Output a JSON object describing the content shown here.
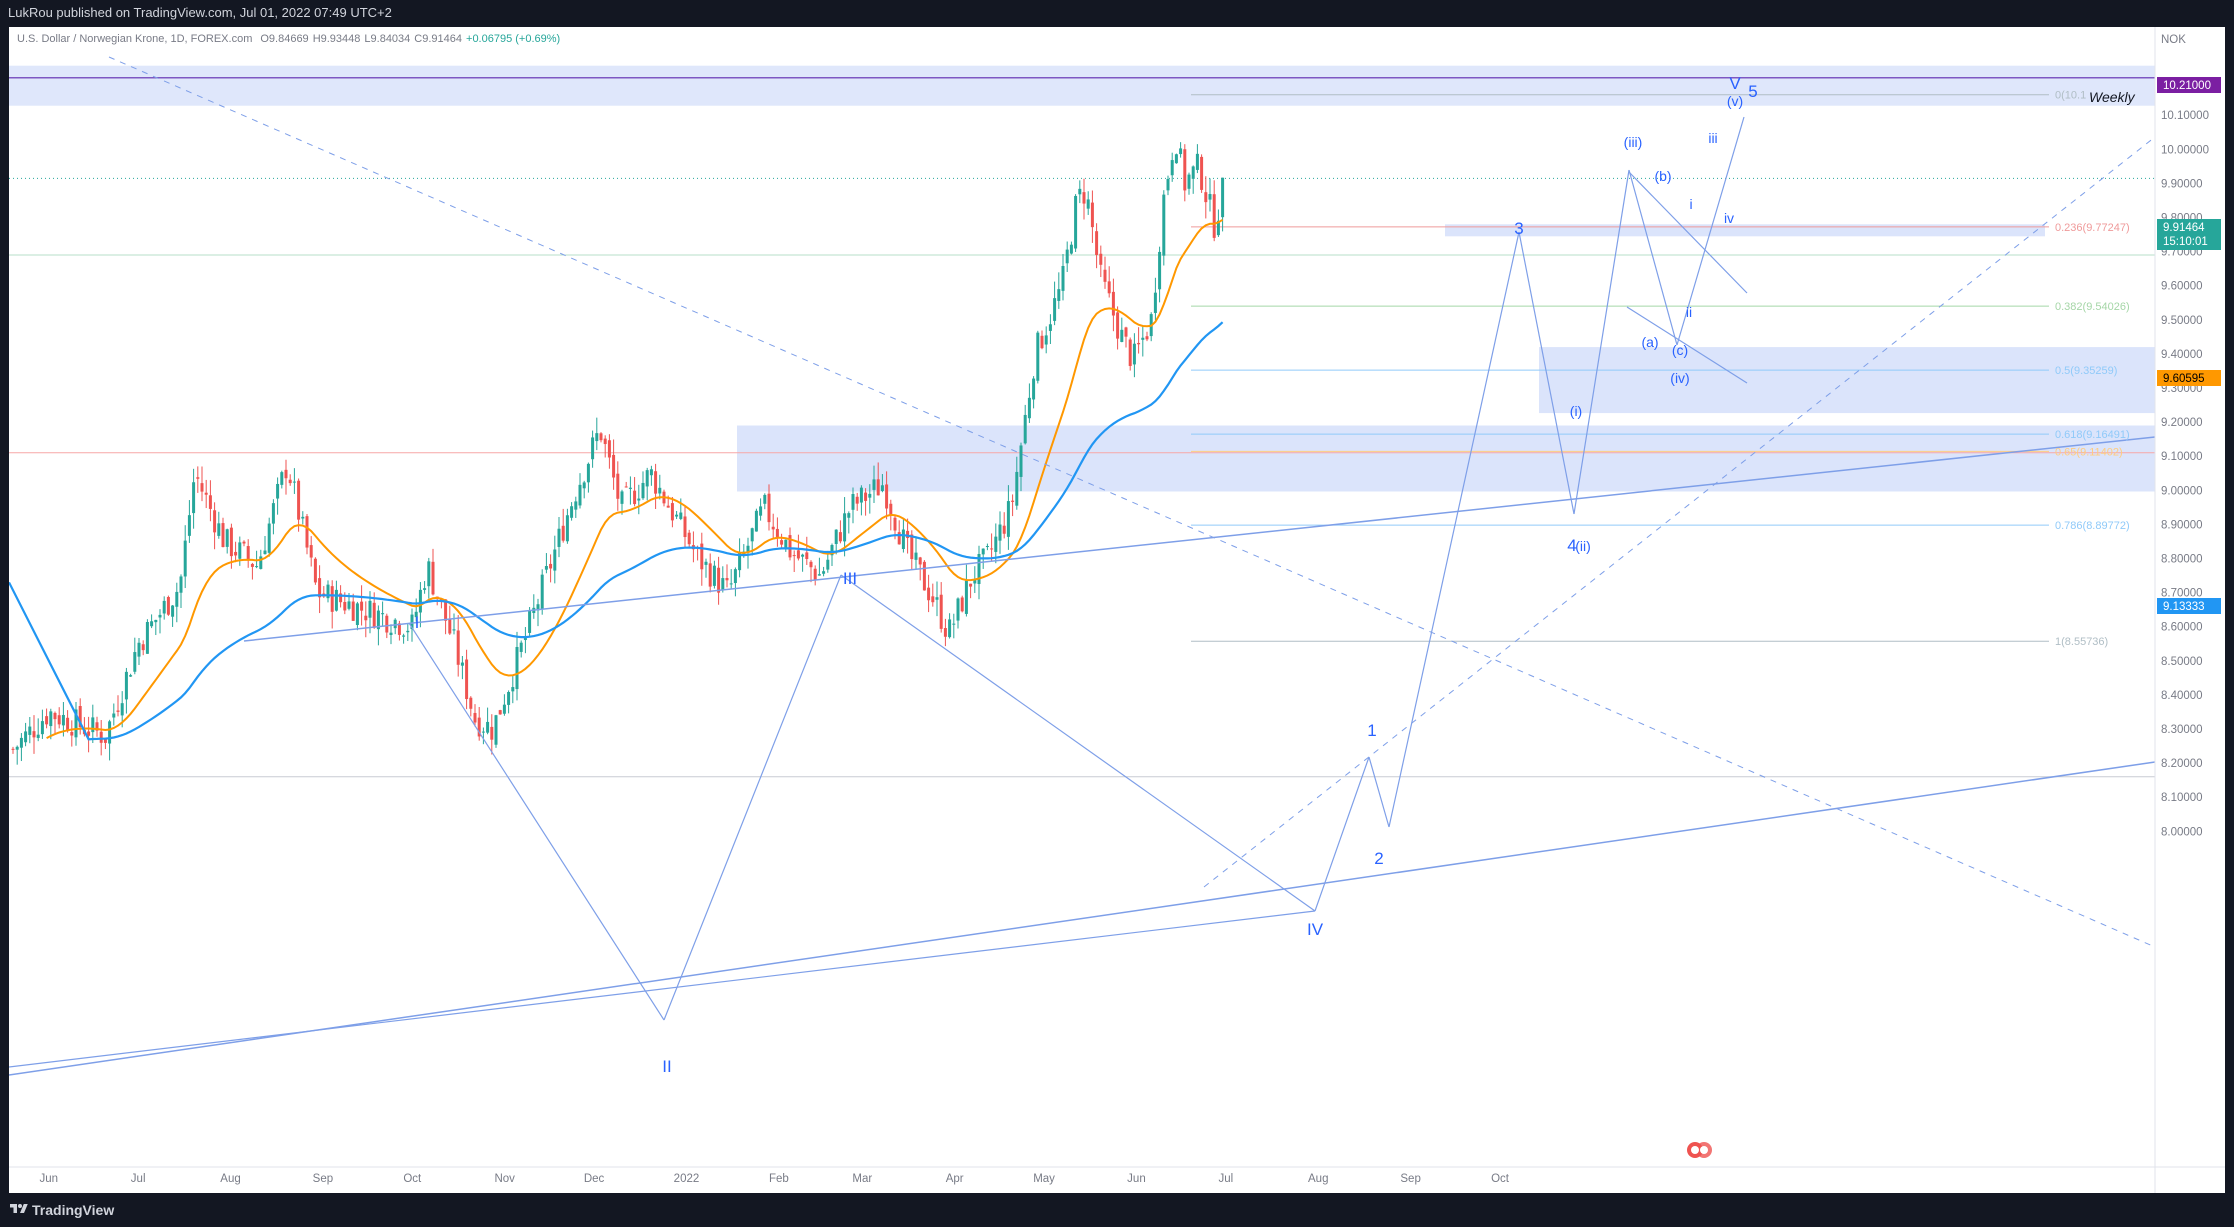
{
  "header": {
    "publisher": "LukRou published on TradingView.com, Jul 01, 2022 07:49 UTC+2"
  },
  "footer": {
    "brand": "TradingView"
  },
  "legend": {
    "symbol": "U.S. Dollar / Norwegian Krone, 1D, FOREX.com",
    "open": "O9.84669",
    "high": "H9.93448",
    "low": "L9.84034",
    "close": "C9.91464",
    "change": "+0.06795 (+0.69%)"
  },
  "axis": {
    "currency": "NOK"
  },
  "colors": {
    "up": "#26a69a",
    "down": "#ef5350",
    "ema_fast": "#ff9800",
    "ema_slow": "#2196f3",
    "drawing": "#7e9fe8",
    "zone": "#dbe4fb",
    "price_label": "#26a69a"
  },
  "labels": {
    "weekly": "Weekly",
    "price_current": "9.91464",
    "countdown": "15:10:01",
    "price_top": "10.21000",
    "price_ema_fast": "9.60595",
    "price_ema_slow": "9.13333"
  },
  "chart_data": {
    "type": "candlestick",
    "title": "U.S. Dollar / Norwegian Krone, 1D, FOREX.com",
    "xlabel": "",
    "ylabel": "",
    "ylim": [
      7.97,
      10.32
    ],
    "y_ticks": [
      "8.00000",
      "8.10000",
      "8.20000",
      "8.30000",
      "8.40000",
      "8.50000",
      "8.60000",
      "8.70000",
      "8.80000",
      "8.90000",
      "9.00000",
      "9.10000",
      "9.20000",
      "9.30000",
      "9.40000",
      "9.50000",
      "9.60000",
      "9.70000",
      "9.80000",
      "9.90000",
      "10.00000",
      "10.10000"
    ],
    "x_ticks": [
      "Jun",
      "Jul",
      "Aug",
      "Sep",
      "Oct",
      "Nov",
      "Dec",
      "2022",
      "Feb",
      "Mar",
      "Apr",
      "May",
      "Jun",
      "Jul",
      "Aug",
      "Sep",
      "Oct"
    ],
    "price_path_anchors": [
      [
        "2021-05-20",
        8.24
      ],
      [
        "2021-06-01",
        8.35
      ],
      [
        "2021-06-20",
        8.28
      ],
      [
        "2021-07-01",
        8.55
      ],
      [
        "2021-07-15",
        8.72
      ],
      [
        "2021-07-20",
        9.05
      ],
      [
        "2021-07-30",
        8.85
      ],
      [
        "2021-08-10",
        8.78
      ],
      [
        "2021-08-20",
        9.08
      ],
      [
        "2021-08-30",
        8.7
      ],
      [
        "2021-09-15",
        8.65
      ],
      [
        "2021-10-01",
        8.6
      ],
      [
        "2021-10-06",
        8.78
      ],
      [
        "2021-10-15",
        8.55
      ],
      [
        "2021-10-22",
        8.33
      ],
      [
        "2021-10-28",
        8.3
      ],
      [
        "2021-11-10",
        8.62
      ],
      [
        "2021-11-24",
        8.98
      ],
      [
        "2021-12-03",
        9.18
      ],
      [
        "2021-12-10",
        8.95
      ],
      [
        "2021-12-20",
        9.05
      ],
      [
        "2022-01-05",
        8.8
      ],
      [
        "2022-01-15",
        8.7
      ],
      [
        "2022-01-27",
        8.95
      ],
      [
        "2022-02-05",
        8.82
      ],
      [
        "2022-02-15",
        8.75
      ],
      [
        "2022-02-25",
        8.95
      ],
      [
        "2022-03-08",
        9.02
      ],
      [
        "2022-03-16",
        8.82
      ],
      [
        "2022-03-25",
        8.68
      ],
      [
        "2022-03-30",
        8.58
      ],
      [
        "2022-04-07",
        8.75
      ],
      [
        "2022-04-12",
        8.8
      ],
      [
        "2022-04-20",
        8.95
      ],
      [
        "2022-04-28",
        9.4
      ],
      [
        "2022-05-07",
        9.6
      ],
      [
        "2022-05-12",
        9.85
      ],
      [
        "2022-05-15",
        9.88
      ],
      [
        "2022-05-20",
        9.62
      ],
      [
        "2022-05-27",
        9.45
      ],
      [
        "2022-05-31",
        9.38
      ],
      [
        "2022-06-06",
        9.5
      ],
      [
        "2022-06-10",
        9.85
      ],
      [
        "2022-06-14",
        10.05
      ],
      [
        "2022-06-17",
        9.9
      ],
      [
        "2022-06-22",
        9.95
      ],
      [
        "2022-06-27",
        9.78
      ],
      [
        "2022-07-01",
        9.91
      ]
    ],
    "moving_averages": [
      {
        "name": "",
        "color": "#ff9800",
        "last": 9.60595
      },
      {
        "name": "",
        "color": "#2196f3",
        "last": 9.13333
      }
    ],
    "fib_levels": [
      {
        "label": "0(10.1",
        "value": 10.16
      },
      {
        "label": "0.236(9.77247)",
        "value": 9.77247
      },
      {
        "label": "0.382(9.54026)",
        "value": 9.54026
      },
      {
        "label": "0.5(9.35259)",
        "value": 9.35259
      },
      {
        "label": "0.618(9.16491)",
        "value": 9.16491
      },
      {
        "label": "0.65(9.11402)",
        "value": 9.11402
      },
      {
        "label": "0.786(8.89772)",
        "value": 8.89772
      },
      {
        "label": "1(8.55736)",
        "value": 8.55736
      }
    ],
    "wave_labels": [
      "I",
      "II",
      "III",
      "IV",
      "V",
      "1",
      "2",
      "3",
      "4",
      "5",
      "(i)",
      "(ii)",
      "(iii)",
      "(iv)",
      "(v)",
      "(a)",
      "(b)",
      "(c)",
      "i",
      "ii",
      "iii",
      "iv"
    ]
  }
}
